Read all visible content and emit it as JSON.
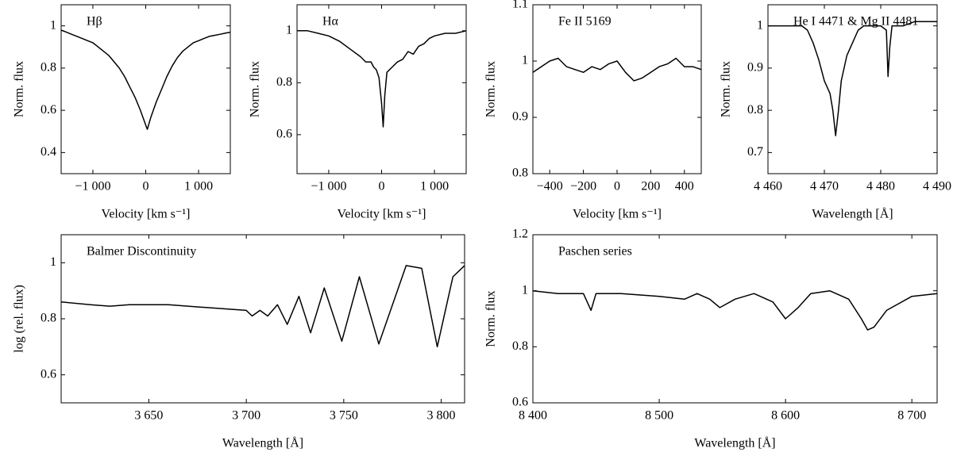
{
  "chart_data": [
    {
      "type": "line",
      "title": "Hβ",
      "x_label": "Velocity [km s⁻¹]",
      "y_label": "Norm. flux",
      "xlim": [
        -1600,
        1600
      ],
      "ylim": [
        0.3,
        1.1
      ],
      "xticks": [
        {
          "value": -1000,
          "label": "−1 000"
        },
        0,
        {
          "value": 1000,
          "label": "1 000"
        }
      ],
      "yticks": [
        0.4,
        0.6,
        0.8,
        1
      ],
      "x": [
        -1600,
        -1500,
        -1400,
        -1300,
        -1200,
        -1100,
        -1000,
        -900,
        -800,
        -700,
        -600,
        -500,
        -400,
        -300,
        -200,
        -100,
        0,
        30,
        100,
        200,
        300,
        400,
        500,
        600,
        700,
        800,
        900,
        1000,
        1100,
        1200,
        1300,
        1400,
        1500,
        1600
      ],
      "series": [
        {
          "color": "#000000",
          "values": [
            0.98,
            0.97,
            0.96,
            0.95,
            0.94,
            0.93,
            0.92,
            0.9,
            0.88,
            0.86,
            0.83,
            0.8,
            0.76,
            0.71,
            0.66,
            0.6,
            0.53,
            0.51,
            0.57,
            0.64,
            0.7,
            0.76,
            0.81,
            0.85,
            0.88,
            0.9,
            0.92,
            0.93,
            0.94,
            0.95,
            0.955,
            0.96,
            0.965,
            0.97
          ]
        }
      ]
    },
    {
      "type": "line",
      "title": "Hα",
      "x_label": "Velocity [km s⁻¹]",
      "y_label": "Norm. flux",
      "xlim": [
        -1600,
        1600
      ],
      "ylim": [
        0.45,
        1.1
      ],
      "xticks": [
        {
          "value": -1000,
          "label": "−1 000"
        },
        0,
        {
          "value": 1000,
          "label": "1 000"
        }
      ],
      "yticks": [
        0.6,
        0.8,
        1
      ],
      "x": [
        -1600,
        -1400,
        -1200,
        -1000,
        -800,
        -600,
        -400,
        -300,
        -200,
        -150,
        -100,
        -50,
        0,
        30,
        60,
        100,
        200,
        300,
        400,
        500,
        600,
        700,
        800,
        900,
        1000,
        1200,
        1400,
        1600
      ],
      "series": [
        {
          "color": "#000000",
          "values": [
            1.0,
            1.0,
            0.99,
            0.98,
            0.96,
            0.93,
            0.9,
            0.88,
            0.88,
            0.86,
            0.85,
            0.82,
            0.72,
            0.63,
            0.75,
            0.84,
            0.86,
            0.88,
            0.89,
            0.92,
            0.91,
            0.94,
            0.95,
            0.97,
            0.98,
            0.99,
            0.99,
            1.0
          ]
        }
      ]
    },
    {
      "type": "line",
      "title": "Fe II 5169",
      "x_label": "Velocity [km s⁻¹]",
      "y_label": "Norm. flux",
      "xlim": [
        -500,
        500
      ],
      "ylim": [
        0.8,
        1.1
      ],
      "xticks": [
        {
          "value": -400,
          "label": "−400"
        },
        {
          "value": -200,
          "label": "−200"
        },
        0,
        200,
        400
      ],
      "yticks": [
        0.8,
        0.9,
        1,
        1.1
      ],
      "x": [
        -500,
        -450,
        -400,
        -350,
        -300,
        -250,
        -200,
        -150,
        -100,
        -50,
        0,
        50,
        100,
        150,
        200,
        250,
        300,
        350,
        400,
        450,
        500
      ],
      "series": [
        {
          "color": "#000000",
          "values": [
            0.98,
            0.99,
            1.0,
            1.005,
            0.99,
            0.985,
            0.98,
            0.99,
            0.985,
            0.995,
            1.0,
            0.98,
            0.965,
            0.97,
            0.98,
            0.99,
            0.995,
            1.005,
            0.99,
            0.99,
            0.985
          ]
        }
      ]
    },
    {
      "type": "line",
      "title": "He I 4471 & Mg II 4481",
      "x_label": "Wavelength [Å]",
      "y_label": "Norm. flux",
      "xlim": [
        4460,
        4490
      ],
      "ylim": [
        0.65,
        1.05
      ],
      "xticks": [
        {
          "value": 4460,
          "label": "4 460"
        },
        {
          "value": 4470,
          "label": "4 470"
        },
        {
          "value": 4480,
          "label": "4 480"
        },
        {
          "value": 4490,
          "label": "4 490"
        }
      ],
      "yticks": [
        0.7,
        0.8,
        0.9,
        1
      ],
      "x": [
        4460,
        4462,
        4464,
        4466,
        4467,
        4468,
        4469,
        4470,
        4471,
        4471.5,
        4472,
        4472.5,
        4473,
        4474,
        4475,
        4476,
        4477,
        4478,
        4479,
        4480,
        4481,
        4481.3,
        4481.6,
        4482,
        4484,
        4486,
        4488,
        4490
      ],
      "series": [
        {
          "color": "#000000",
          "values": [
            1.0,
            1.0,
            1.0,
            1.0,
            0.99,
            0.96,
            0.92,
            0.87,
            0.84,
            0.8,
            0.74,
            0.8,
            0.87,
            0.93,
            0.96,
            0.99,
            1.0,
            1.0,
            1.0,
            1.0,
            0.99,
            0.88,
            0.95,
            1.0,
            1.0,
            1.01,
            1.01,
            1.01
          ]
        }
      ]
    },
    {
      "type": "line",
      "title": "Balmer Discontinuity",
      "x_label": "Wavelength [Å]",
      "y_label": "log (rel. flux)",
      "xlim": [
        3605,
        3812
      ],
      "ylim": [
        0.5,
        1.1
      ],
      "xticks": [
        {
          "value": 3650,
          "label": "3 650"
        },
        {
          "value": 3700,
          "label": "3 700"
        },
        {
          "value": 3750,
          "label": "3 750"
        },
        {
          "value": 3800,
          "label": "3 800"
        }
      ],
      "yticks": [
        0.6,
        0.8,
        1
      ],
      "x": [
        3605,
        3620,
        3630,
        3640,
        3660,
        3680,
        3700,
        3703,
        3707,
        3711,
        3716,
        3721,
        3727,
        3733,
        3740,
        3749,
        3758,
        3768,
        3782,
        3790,
        3798,
        3806,
        3812
      ],
      "series": [
        {
          "color": "#000000",
          "values": [
            0.86,
            0.85,
            0.845,
            0.85,
            0.85,
            0.84,
            0.83,
            0.81,
            0.83,
            0.81,
            0.85,
            0.78,
            0.88,
            0.75,
            0.91,
            0.72,
            0.95,
            0.71,
            0.99,
            0.98,
            0.7,
            0.95,
            0.99
          ]
        }
      ]
    },
    {
      "type": "line",
      "title": "Paschen series",
      "x_label": "Wavelength [Å]",
      "y_label": "Norm. flux",
      "xlim": [
        8400,
        8720
      ],
      "ylim": [
        0.6,
        1.2
      ],
      "xticks": [
        {
          "value": 8400,
          "label": "8 400"
        },
        {
          "value": 8500,
          "label": "8 500"
        },
        {
          "value": 8600,
          "label": "8 600"
        },
        {
          "value": 8700,
          "label": "8 700"
        }
      ],
      "yticks": [
        0.6,
        0.8,
        1,
        1.2
      ],
      "x": [
        8400,
        8420,
        8440,
        8446,
        8450,
        8470,
        8500,
        8520,
        8530,
        8540,
        8548,
        8560,
        8575,
        8590,
        8600,
        8610,
        8620,
        8635,
        8650,
        8660,
        8665,
        8670,
        8680,
        8700,
        8720
      ],
      "series": [
        {
          "color": "#000000",
          "values": [
            1.0,
            0.99,
            0.99,
            0.93,
            0.99,
            0.99,
            0.98,
            0.97,
            0.99,
            0.97,
            0.94,
            0.97,
            0.99,
            0.96,
            0.9,
            0.94,
            0.99,
            1.0,
            0.97,
            0.9,
            0.86,
            0.87,
            0.93,
            0.98,
            0.99
          ]
        }
      ]
    }
  ]
}
